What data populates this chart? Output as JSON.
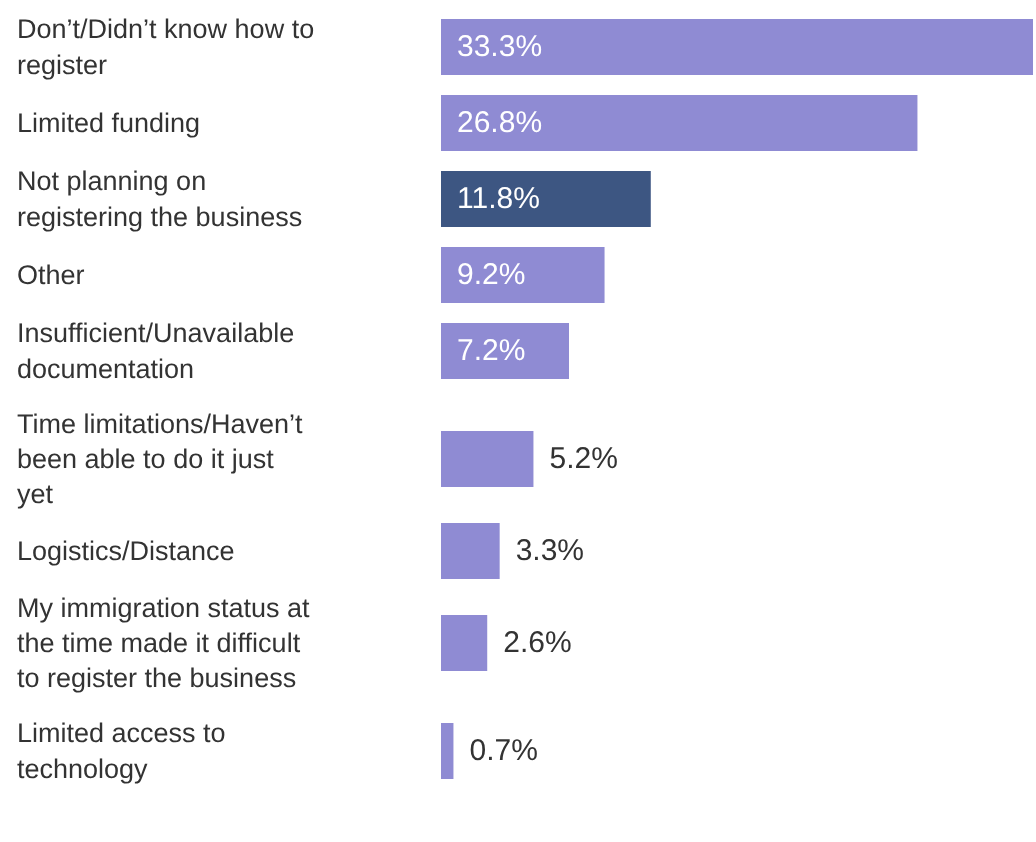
{
  "chart_data": {
    "type": "bar",
    "orientation": "horizontal",
    "categories": [
      "Don’t/Didn’t know how to register",
      "Limited funding",
      "Not planning on registering the business",
      "Other",
      "Insufficient/Unavailable documentation",
      "Time limitations/Haven’t been able to do it just yet",
      "Logistics/Distance",
      "My immigration status at the time made it difficult to register the business",
      "Limited access to technology"
    ],
    "values": [
      33.3,
      26.8,
      11.8,
      9.2,
      7.2,
      5.2,
      3.3,
      2.6,
      0.7
    ],
    "colors": [
      "#8f8bd3",
      "#8f8bd3",
      "#3d5682",
      "#8f8bd3",
      "#8f8bd3",
      "#8f8bd3",
      "#8f8bd3",
      "#8f8bd3",
      "#8f8bd3"
    ],
    "value_labels": [
      "33.3%",
      "26.8%",
      "11.8%",
      "9.2%",
      "7.2%",
      "5.2%",
      "3.3%",
      "2.6%",
      "0.7%"
    ]
  }
}
